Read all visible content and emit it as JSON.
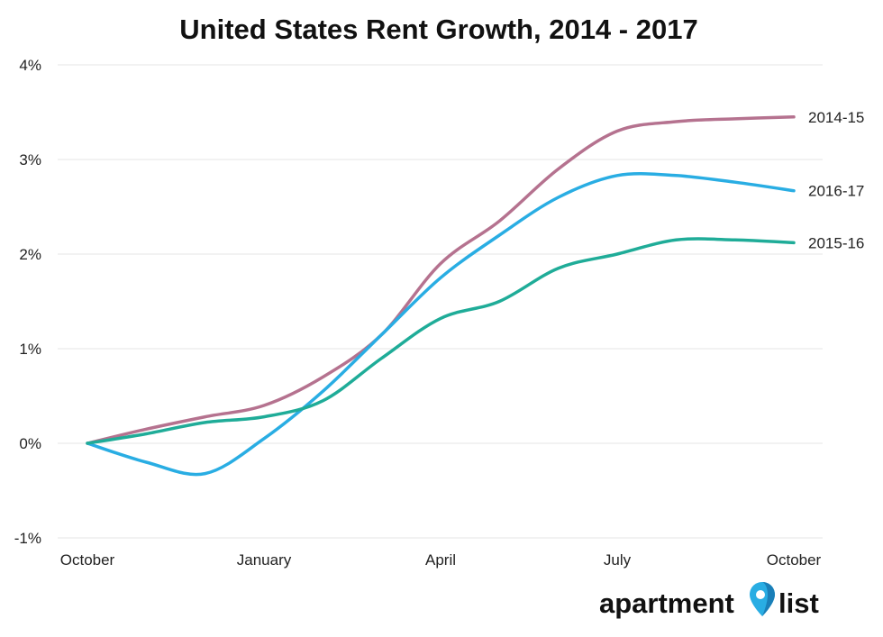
{
  "chart_data": {
    "type": "line",
    "title": "United States Rent Growth, 2014 - 2017",
    "xlabel": "",
    "ylabel": "",
    "x_ticks": [
      "October",
      "January",
      "April",
      "July",
      "October"
    ],
    "x_range": [
      0,
      12
    ],
    "y_ticks": [
      {
        "value": 4,
        "label": "4%"
      },
      {
        "value": 3,
        "label": "3%"
      },
      {
        "value": 2,
        "label": "2%"
      },
      {
        "value": 1,
        "label": "1%"
      },
      {
        "value": 0,
        "label": "0%"
      },
      {
        "value": -1,
        "label": "-1%"
      }
    ],
    "ylim": [
      -1,
      4
    ],
    "grid": true,
    "legend": "end-of-line labels",
    "series": [
      {
        "name": "2014-15",
        "color": "#b5728f",
        "x": [
          0,
          1,
          2,
          3,
          4,
          5,
          6,
          7,
          8,
          9,
          10,
          11,
          12
        ],
        "values": [
          0,
          0.15,
          0.28,
          0.4,
          0.7,
          1.15,
          1.9,
          2.35,
          2.9,
          3.3,
          3.4,
          3.43,
          3.45
        ]
      },
      {
        "name": "2016-17",
        "color": "#29ade3",
        "x": [
          0,
          1,
          2,
          3,
          4,
          5,
          6,
          7,
          8,
          9,
          10,
          11,
          12
        ],
        "values": [
          0,
          -0.2,
          -0.32,
          0.05,
          0.55,
          1.15,
          1.75,
          2.2,
          2.6,
          2.83,
          2.83,
          2.76,
          2.67
        ]
      },
      {
        "name": "2015-16",
        "color": "#1fac98",
        "x": [
          0,
          1,
          2,
          3,
          4,
          5,
          6,
          7,
          8,
          9,
          10,
          11,
          12
        ],
        "values": [
          0,
          0.1,
          0.22,
          0.28,
          0.45,
          0.9,
          1.32,
          1.5,
          1.85,
          2.0,
          2.15,
          2.15,
          2.12
        ]
      }
    ]
  },
  "branding": {
    "logo_text_left": "apartment",
    "logo_text_right": "list",
    "logo_icon": "map-pin-icon",
    "logo_colors": [
      "#29ade3",
      "#1a7fb8"
    ]
  }
}
